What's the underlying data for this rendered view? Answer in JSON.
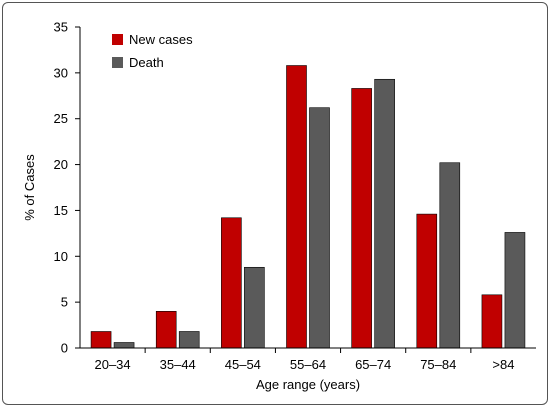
{
  "chart_data": {
    "type": "bar",
    "title": "",
    "xlabel": "Age range (years)",
    "ylabel": "% of Cases",
    "ylim": [
      0,
      35
    ],
    "yticks": [
      "0",
      "5",
      "10",
      "15",
      "20",
      "25",
      "30",
      "35"
    ],
    "categories": [
      "20–34",
      "35–44",
      "45–54",
      "55–64",
      "65–74",
      "75–84",
      ">84"
    ],
    "series": [
      {
        "name": "New cases",
        "color": "#c00000",
        "values": [
          1.8,
          4.0,
          14.2,
          30.8,
          28.3,
          14.6,
          5.8
        ]
      },
      {
        "name": "Death",
        "color": "#5a5a5a",
        "values": [
          0.6,
          1.8,
          8.8,
          26.2,
          29.3,
          20.2,
          12.6
        ]
      }
    ],
    "grid": false,
    "legend_position": "top-left"
  }
}
